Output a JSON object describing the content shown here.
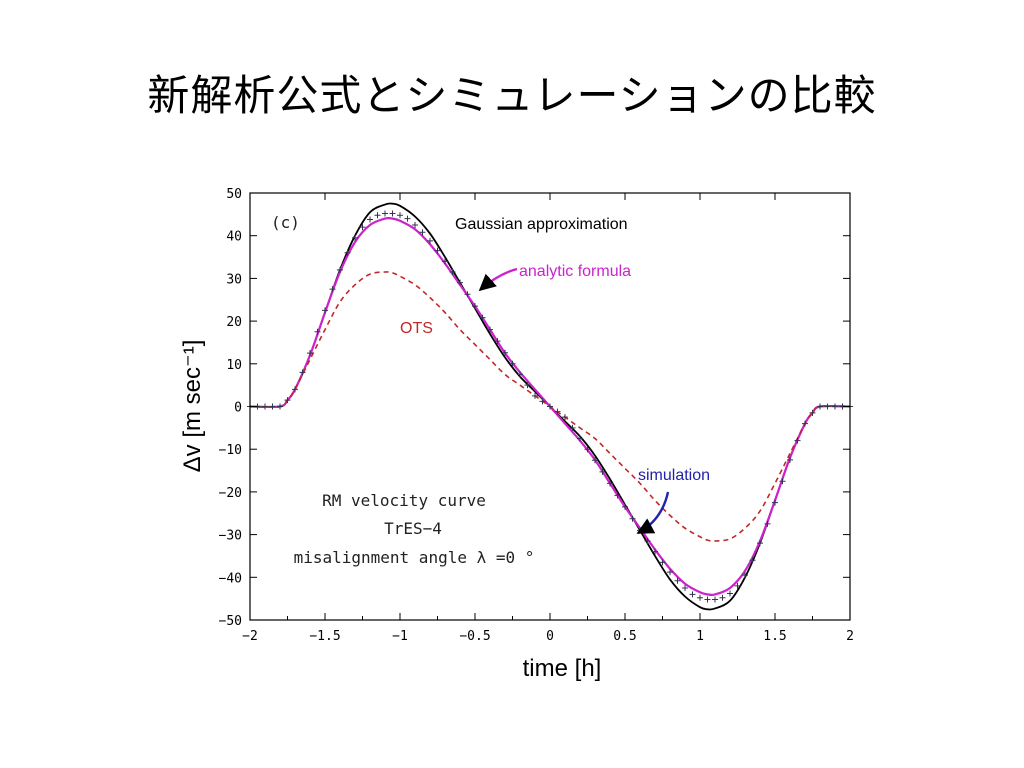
{
  "slide": {
    "title": "新解析公式とシミュレーションの比較"
  },
  "colors": {
    "gaussian": "#000000",
    "analytic": "#cc22cc",
    "ots": "#c0282a",
    "simulation": "#333355",
    "simulation_label": "#2222aa"
  },
  "chart_data": {
    "type": "line",
    "panel_label": "(c)",
    "xlabel": "time [h]",
    "ylabel": "Δv [m sec⁻¹]",
    "xlim": [
      -2,
      2
    ],
    "ylim": [
      -50,
      50
    ],
    "xticks": [
      -2,
      -1.5,
      -1,
      -0.5,
      0,
      0.5,
      1,
      1.5,
      2
    ],
    "xtick_labels": [
      "−2",
      "−1.5",
      "−1",
      "−0.5",
      "0",
      "0.5",
      "1",
      "1.5",
      "2"
    ],
    "yticks": [
      50,
      40,
      30,
      20,
      10,
      0,
      -10,
      -20,
      -30,
      -40,
      -50
    ],
    "ytick_labels": [
      "50",
      "40",
      "30",
      "20",
      "10",
      "0",
      "−10",
      "−20",
      "−30",
      "−40",
      "−50"
    ],
    "grid": false,
    "annotations": {
      "gaussian": "Gaussian approximation",
      "analytic": "analytic formula",
      "ots": "OTS",
      "simulation": "simulation",
      "info_line1": "RM velocity curve",
      "info_line2": "TrES−4",
      "info_line3": "misalignment angle λ =0 °"
    },
    "series": [
      {
        "key": "gaussian",
        "style": "solid",
        "x": [
          -2,
          -1.8,
          -1.75,
          -1.7,
          -1.6,
          -1.5,
          -1.4,
          -1.3,
          -1.2,
          -1.1,
          -1.05,
          -1.0,
          -0.9,
          -0.8,
          -0.7,
          -0.6,
          -0.5,
          -0.4,
          -0.3,
          -0.2,
          -0.1,
          0,
          0.1,
          0.2,
          0.3,
          0.4,
          0.5,
          0.6,
          0.7,
          0.8,
          0.9,
          1.0,
          1.05,
          1.1,
          1.2,
          1.3,
          1.4,
          1.5,
          1.6,
          1.7,
          1.75,
          1.8,
          2
        ],
        "y": [
          0,
          0,
          1.5,
          4,
          12,
          22,
          32,
          40,
          45.5,
          47.3,
          47.5,
          47,
          44.5,
          40.5,
          35,
          29,
          23,
          17,
          11.5,
          7,
          3.5,
          0,
          -3.5,
          -7,
          -11.5,
          -17,
          -23,
          -29,
          -35,
          -40.5,
          -44.5,
          -47,
          -47.5,
          -47.3,
          -45.5,
          -40,
          -32,
          -22,
          -12,
          -4,
          -1.5,
          0,
          0
        ]
      },
      {
        "key": "analytic",
        "style": "solid",
        "x": [
          -2,
          -1.8,
          -1.75,
          -1.7,
          -1.6,
          -1.5,
          -1.4,
          -1.3,
          -1.2,
          -1.1,
          -1.05,
          -1.0,
          -0.9,
          -0.8,
          -0.7,
          -0.6,
          -0.5,
          -0.4,
          -0.3,
          -0.2,
          -0.1,
          0,
          0.1,
          0.2,
          0.3,
          0.4,
          0.5,
          0.6,
          0.7,
          0.8,
          0.9,
          1.0,
          1.05,
          1.1,
          1.2,
          1.3,
          1.4,
          1.5,
          1.6,
          1.7,
          1.75,
          1.8,
          2
        ],
        "y": [
          0,
          0,
          1.5,
          4,
          12,
          22,
          31.5,
          38.5,
          42.5,
          44,
          44,
          43.5,
          41.5,
          38,
          33.5,
          28.5,
          23.5,
          18,
          12.5,
          8,
          4,
          0,
          -4,
          -8,
          -12.5,
          -18,
          -23.5,
          -28.5,
          -33.5,
          -38,
          -41.5,
          -43.5,
          -44,
          -44,
          -42.5,
          -38.5,
          -31.5,
          -22,
          -12,
          -4,
          -1.5,
          0,
          0
        ]
      },
      {
        "key": "ots",
        "style": "dashed",
        "x": [
          -2,
          -1.8,
          -1.75,
          -1.7,
          -1.6,
          -1.5,
          -1.4,
          -1.3,
          -1.2,
          -1.1,
          -1.05,
          -1.0,
          -0.9,
          -0.8,
          -0.7,
          -0.6,
          -0.5,
          -0.4,
          -0.3,
          -0.2,
          -0.1,
          0,
          0.1,
          0.2,
          0.3,
          0.4,
          0.5,
          0.6,
          0.7,
          0.8,
          0.9,
          1.0,
          1.05,
          1.1,
          1.2,
          1.3,
          1.4,
          1.5,
          1.6,
          1.7,
          1.75,
          1.8,
          2
        ],
        "y": [
          0,
          0,
          1.5,
          4,
          11,
          18,
          24.5,
          28.5,
          31,
          31.5,
          31.3,
          30.5,
          28.5,
          25.5,
          22,
          18,
          14.5,
          11,
          7.5,
          5,
          2.5,
          0,
          -2.5,
          -5,
          -7.5,
          -11,
          -14.5,
          -18,
          -22,
          -25.5,
          -28.5,
          -30.5,
          -31.3,
          -31.5,
          -31,
          -28.5,
          -24.5,
          -18,
          -11,
          -4,
          -1.5,
          0,
          0
        ]
      },
      {
        "key": "simulation",
        "style": "plus",
        "x": [
          -2,
          -1.95,
          -1.9,
          -1.85,
          -1.8,
          -1.75,
          -1.7,
          -1.65,
          -1.6,
          -1.55,
          -1.5,
          -1.45,
          -1.4,
          -1.35,
          -1.3,
          -1.25,
          -1.2,
          -1.15,
          -1.1,
          -1.05,
          -1.0,
          -0.95,
          -0.9,
          -0.85,
          -0.8,
          -0.75,
          -0.7,
          -0.65,
          -0.6,
          -0.55,
          -0.5,
          -0.45,
          -0.4,
          -0.35,
          -0.3,
          -0.25,
          -0.2,
          -0.15,
          -0.1,
          -0.05,
          0,
          0.05,
          0.1,
          0.15,
          0.2,
          0.25,
          0.3,
          0.35,
          0.4,
          0.45,
          0.5,
          0.55,
          0.6,
          0.65,
          0.7,
          0.75,
          0.8,
          0.85,
          0.9,
          0.95,
          1.0,
          1.05,
          1.1,
          1.15,
          1.2,
          1.25,
          1.3,
          1.35,
          1.4,
          1.45,
          1.5,
          1.55,
          1.6,
          1.65,
          1.7,
          1.75,
          1.8,
          1.85,
          1.9,
          1.95,
          2
        ],
        "y": [
          0,
          0,
          0,
          0,
          0,
          1.5,
          4,
          8,
          12.5,
          17.5,
          22.5,
          27.5,
          32,
          36,
          39.5,
          42,
          43.8,
          44.8,
          45.2,
          45.2,
          44.8,
          44,
          42.5,
          40.8,
          38.8,
          36.5,
          34,
          31.5,
          29,
          26.3,
          23.5,
          20.8,
          18,
          15.3,
          12.6,
          10,
          7.5,
          5,
          2.5,
          1.2,
          0,
          -1.2,
          -2.5,
          -5,
          -7.5,
          -10,
          -12.6,
          -15.3,
          -18,
          -20.8,
          -23.5,
          -26.3,
          -29,
          -31.5,
          -34,
          -36.5,
          -38.8,
          -40.8,
          -42.5,
          -44,
          -44.8,
          -45.2,
          -45.2,
          -44.8,
          -43.8,
          -42,
          -39.5,
          -36,
          -32,
          -27.5,
          -22.5,
          -17.5,
          -12.5,
          -8,
          -4,
          -1.5,
          0,
          0,
          0,
          0,
          0
        ]
      }
    ]
  }
}
